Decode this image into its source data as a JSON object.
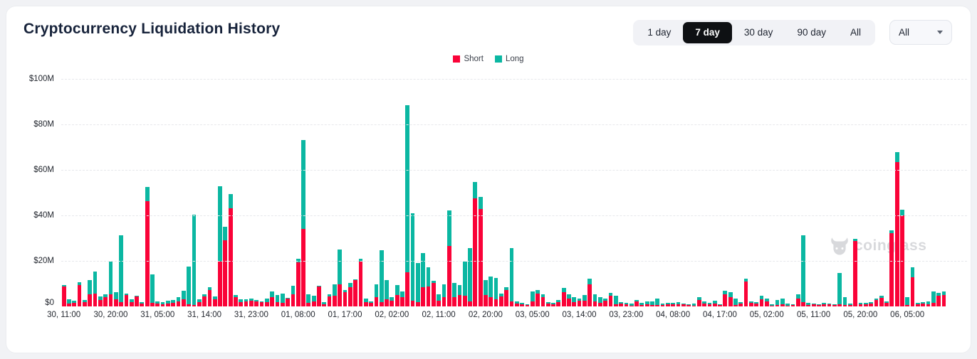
{
  "header": {
    "title": "Cryptocurrency Liquidation History",
    "range_buttons": [
      "1 day",
      "7 day",
      "30 day",
      "90 day",
      "All"
    ],
    "active_range": "7 day",
    "symbol_filter": {
      "value": "All"
    }
  },
  "legend": [
    {
      "label": "Short",
      "color": "#fa0338"
    },
    {
      "label": "Long",
      "color": "#0bb7a2"
    }
  ],
  "watermark": {
    "text": "coinglass"
  },
  "colors": {
    "short": "#fa0338",
    "long": "#0bb7a2",
    "grid": "#e7e8eb",
    "card_bg": "#ffffff",
    "page_bg": "#f1f2f5",
    "active_pill_bg": "#0e1013",
    "active_pill_text": "#ffffff"
  },
  "chart_data": {
    "type": "bar",
    "stacked": true,
    "title": "Cryptocurrency Liquidation History",
    "unit": "USD (millions)",
    "ylim": [
      0,
      100
    ],
    "y_ticks": [
      "$0",
      "$20M",
      "$40M",
      "$60M",
      "$80M",
      "$100M"
    ],
    "y_tick_values": [
      0,
      20,
      40,
      60,
      80,
      100
    ],
    "grid": "horizontal dashed",
    "legend_position": "top center",
    "x_label_every": 9,
    "x_labels": [
      "30, 11:00",
      "30, 20:00",
      "31, 05:00",
      "31, 14:00",
      "31, 23:00",
      "01, 08:00",
      "01, 17:00",
      "02, 02:00",
      "02, 11:00",
      "02, 20:00",
      "03, 05:00",
      "03, 14:00",
      "03, 23:00",
      "04, 08:00",
      "04, 17:00",
      "05, 02:00",
      "05, 11:00",
      "05, 20:00",
      "06, 05:00"
    ],
    "series": [
      {
        "name": "Short",
        "color": "#fa0338",
        "values": [
          8.8,
          1.3,
          1.5,
          9.4,
          1.9,
          5.2,
          5.5,
          2.9,
          4.2,
          5.4,
          3.1,
          2.0,
          5.0,
          2.0,
          4.5,
          1.2,
          46.4,
          1.5,
          1.4,
          1.0,
          1.2,
          1.5,
          2.1,
          3.1,
          0.8,
          0.5,
          1.9,
          4.4,
          7.3,
          3.1,
          19.8,
          29.0,
          43.0,
          4.0,
          2.0,
          2.3,
          2.5,
          2.1,
          1.8,
          2.0,
          4.2,
          2.0,
          1.5,
          3.3,
          5.4,
          19.3,
          34.2,
          1.5,
          2.3,
          8.7,
          1.0,
          4.5,
          4.7,
          9.6,
          6.2,
          8.3,
          11.5,
          19.8,
          2.0,
          1.5,
          4.2,
          2.0,
          3.0,
          2.5,
          5.0,
          4.0,
          15.1,
          2.6,
          2.0,
          8.3,
          8.9,
          10.4,
          2.6,
          4.2,
          26.6,
          4.2,
          5.0,
          4.7,
          2.1,
          47.5,
          42.7,
          5.0,
          4.2,
          3.1,
          4.4,
          7.3,
          2.1,
          1.2,
          1.0,
          0.6,
          2.3,
          5.7,
          4.0,
          1.2,
          1.0,
          1.9,
          6.2,
          3.3,
          1.9,
          2.6,
          2.6,
          9.6,
          2.3,
          1.6,
          2.6,
          4.7,
          1.0,
          1.2,
          0.9,
          0.4,
          2.3,
          0.5,
          1.0,
          0.5,
          0.5,
          0.7,
          0.8,
          1.0,
          1.0,
          0.8,
          0.5,
          0.4,
          2.9,
          1.3,
          0.9,
          1.2,
          0.6,
          5.4,
          4.0,
          0.5,
          1.2,
          10.9,
          1.5,
          1.1,
          3.1,
          2.3,
          0.3,
          0.5,
          1.0,
          0.4,
          0.6,
          3.3,
          1.9,
          0.7,
          0.8,
          0.5,
          0.9,
          0.8,
          0.6,
          1.0,
          0.5,
          0.7,
          28.6,
          1.0,
          0.9,
          1.3,
          2.9,
          3.6,
          1.5,
          32.3,
          63.5,
          40.1,
          0.5,
          12.7,
          0.8,
          1.2,
          1.0,
          1.6,
          4.7,
          5.0
        ]
      },
      {
        "name": "Long",
        "color": "#0bb7a2",
        "values": [
          0.6,
          1.7,
          1.1,
          1.2,
          1.0,
          6.3,
          9.8,
          1.5,
          1.0,
          14.4,
          3.1,
          29.2,
          0.5,
          1.0,
          0.3,
          0.6,
          6.2,
          12.5,
          0.7,
          0.9,
          1.2,
          1.4,
          2.1,
          3.7,
          16.7,
          39.9,
          1.2,
          1.0,
          1.2,
          1.3,
          33.0,
          5.9,
          6.4,
          1.0,
          1.0,
          0.8,
          0.8,
          0.8,
          0.5,
          1.5,
          2.3,
          2.9,
          4.0,
          0.5,
          3.8,
          1.5,
          39.0,
          3.9,
          2.4,
          0.5,
          1.0,
          0.7,
          5.0,
          15.4,
          1.0,
          2.1,
          0.5,
          1.0,
          1.5,
          0.8,
          5.4,
          22.7,
          8.5,
          1.5,
          4.5,
          2.5,
          73.4,
          38.2,
          17.0,
          15.1,
          8.3,
          1.0,
          2.6,
          5.5,
          15.6,
          6.2,
          4.4,
          15.1,
          23.4,
          7.2,
          5.4,
          6.5,
          8.8,
          9.4,
          1.3,
          1.2,
          23.4,
          0.9,
          0.5,
          0.4,
          4.2,
          1.4,
          1.2,
          0.8,
          0.7,
          1.0,
          1.9,
          2.1,
          2.3,
          1.0,
          2.4,
          2.6,
          2.9,
          2.6,
          0.7,
          1.3,
          3.7,
          0.8,
          0.6,
          0.8,
          0.6,
          1.0,
          1.1,
          1.8,
          2.8,
          0.6,
          0.8,
          0.6,
          0.8,
          0.5,
          0.3,
          0.9,
          1.1,
          0.8,
          0.6,
          1.2,
          0.4,
          1.4,
          2.2,
          3.1,
          0.8,
          1.3,
          0.8,
          0.7,
          1.6,
          1.0,
          0.7,
          2.4,
          2.3,
          0.9,
          0.4,
          2.1,
          29.3,
          0.8,
          0.5,
          0.3,
          0.6,
          0.5,
          0.4,
          13.8,
          3.5,
          0.5,
          1.1,
          0.5,
          0.6,
          0.7,
          0.6,
          1.1,
          0.8,
          1.2,
          4.2,
          2.3,
          3.7,
          4.5,
          0.7,
          0.7,
          1.2,
          4.9,
          1.3,
          1.5
        ]
      }
    ]
  }
}
